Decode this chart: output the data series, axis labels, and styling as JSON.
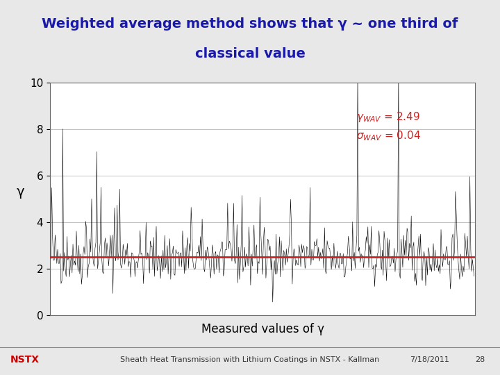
{
  "title_line1": "Weighted average method shows that γ ~ one third of",
  "title_line2": "classical value",
  "title_color": "#1a1aaa",
  "title_bg_color": "#d8d8d8",
  "header_bar_color": "#b03030",
  "ylabel": "γ",
  "xlabel": "Measured values of γ",
  "ylim": [
    0,
    10
  ],
  "gamma_wav": 2.49,
  "sigma_wav": 0.04,
  "annotation_color": "#cc2222",
  "hline_color": "#cc2222",
  "hline_y": 2.49,
  "plot_bg_color": "#ffffff",
  "outer_bg_color": "#e8e8e8",
  "footer_text": "Sheath Heat Transmission with Lithium Coatings in NSTX - Kallman",
  "footer_right": "7/18/2011",
  "footer_page": "28",
  "nstx_color": "#cc0000",
  "seed": 42,
  "n_points": 500
}
